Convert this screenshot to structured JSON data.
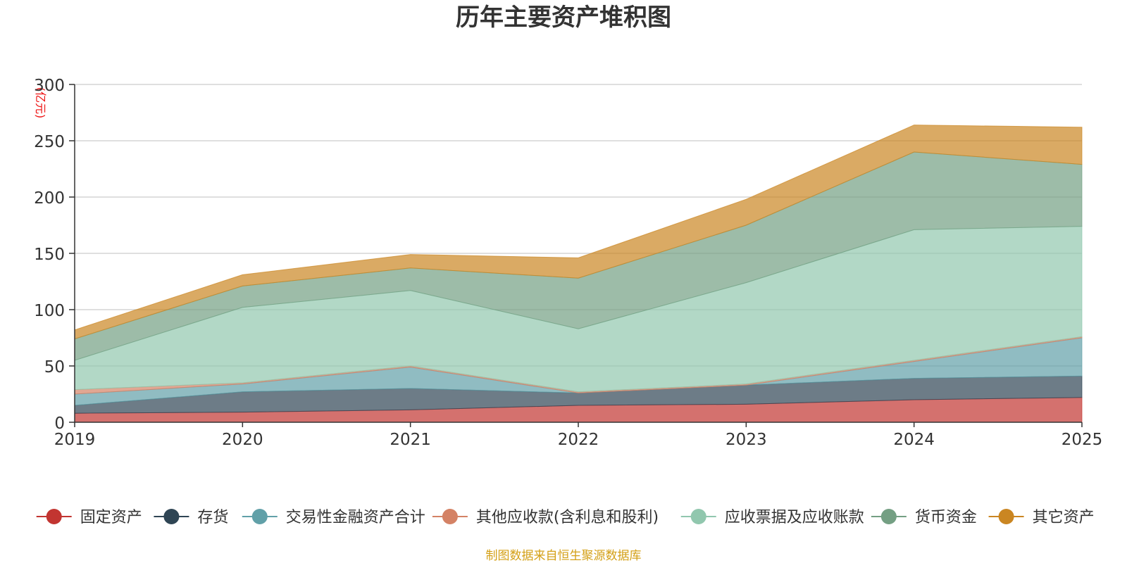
{
  "chart_data": {
    "type": "area",
    "stacked": true,
    "title": "历年主要资产堆积图",
    "unit_label": "(亿元)",
    "x": [
      "2019",
      "2020",
      "2021",
      "2022",
      "2023",
      "2024",
      "2025"
    ],
    "ylim": [
      0,
      300
    ],
    "yticks": [
      0,
      50,
      100,
      150,
      200,
      250,
      300
    ],
    "grid": true,
    "legend_position": "bottom",
    "series": [
      {
        "name": "固定资产",
        "values": [
          8,
          9,
          11,
          15,
          16,
          20,
          22
        ],
        "color": "#c23531"
      },
      {
        "name": "存货",
        "values": [
          7,
          18,
          19,
          11,
          17,
          19,
          19
        ],
        "color": "#2f4554"
      },
      {
        "name": "交易性金融资产合计",
        "values": [
          10,
          7,
          19,
          0,
          0,
          15,
          34
        ],
        "color": "#61a0a8"
      },
      {
        "name": "其他应收款(含利息和股利)",
        "values": [
          4,
          1,
          1,
          1,
          1,
          1,
          1
        ],
        "color": "#d48265"
      },
      {
        "name": "应收票据及应收账款",
        "values": [
          26,
          67,
          67,
          56,
          90,
          116,
          98
        ],
        "color": "#91c7ae"
      },
      {
        "name": "货币资金",
        "values": [
          19,
          19,
          20,
          45,
          51,
          69,
          55
        ],
        "color": "#749f83"
      },
      {
        "name": "其它资产",
        "values": [
          8,
          10,
          12,
          18,
          23,
          24,
          33
        ],
        "color": "#ca8622"
      }
    ]
  },
  "source_text": "制图数据来自恒生聚源数据库"
}
